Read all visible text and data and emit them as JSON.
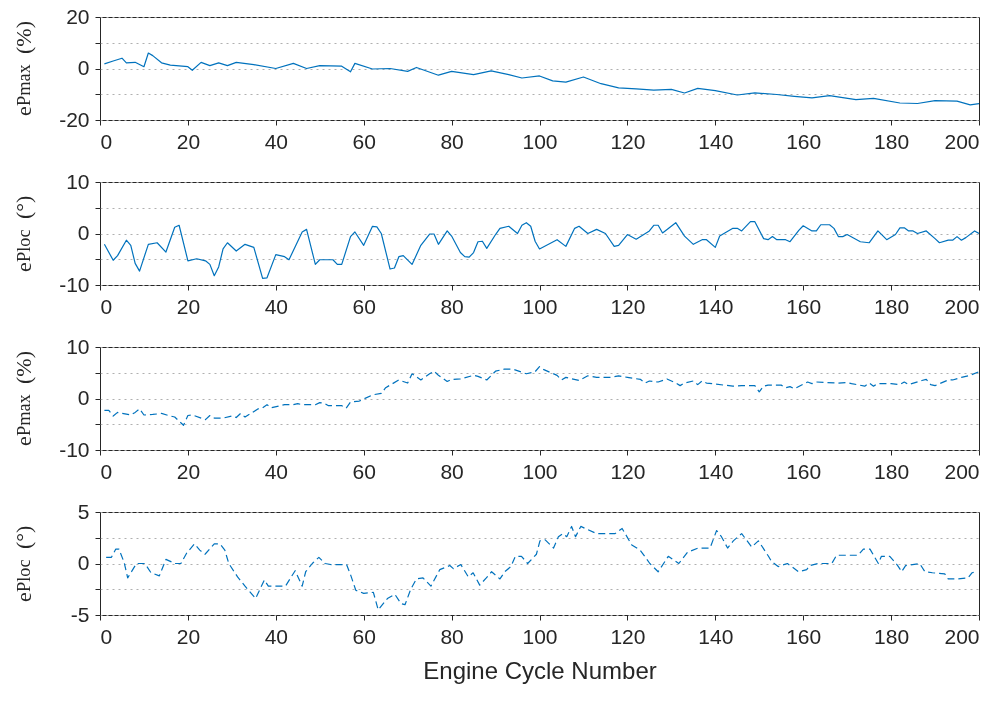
{
  "chart_data": [
    {
      "type": "line",
      "ylabel": "e$_{Pmax}$  (%)",
      "color": "#0072bd",
      "line_style": "solid",
      "grid": "y",
      "xlim": [
        0,
        200
      ],
      "xticks": [
        0,
        20,
        40,
        60,
        80,
        100,
        120,
        140,
        160,
        180,
        200
      ],
      "ylim": [
        -20,
        20
      ],
      "yticks": [
        -20,
        {
          "value": -10,
          "label": null
        },
        0,
        {
          "value": 10,
          "label": null
        },
        20
      ],
      "x": [
        1,
        3,
        5,
        6,
        8,
        10,
        11,
        12,
        14,
        16,
        20,
        21,
        23,
        25,
        27,
        29,
        31,
        35,
        40,
        44,
        47,
        50,
        55,
        57,
        58,
        62,
        66,
        70,
        72,
        77,
        80,
        85,
        89,
        93,
        96,
        100,
        103,
        106,
        110,
        114,
        118,
        122,
        126,
        130,
        133,
        136,
        140,
        145,
        149,
        154,
        158,
        162,
        166,
        172,
        176,
        182,
        186,
        190,
        195,
        198,
        200
      ],
      "values": [
        1.8,
        2.9,
        4,
        2.2,
        2.4,
        0.7,
        6,
        5,
        2.2,
        1.3,
        0.7,
        -0.7,
        2.4,
        1.1,
        2.2,
        1.1,
        2.4,
        1.5,
        0,
        2,
        0,
        1.1,
        0.9,
        -1.3,
        2,
        -0.2,
        0,
        -1.1,
        0.4,
        -2.6,
        -1.1,
        -2.4,
        -0.9,
        -2.4,
        -3.7,
        -2.9,
        -4.8,
        -5.3,
        -3.3,
        -5.9,
        -7.5,
        -7.9,
        -8.4,
        -8.1,
        -9.5,
        -7.7,
        -8.6,
        -10.3,
        -9.5,
        -10.1,
        -10.8,
        -11.4,
        -10.5,
        -12.1,
        -11.6,
        -13.4,
        -13.6,
        -12.5,
        -12.7,
        -14.1,
        -13.6
      ]
    },
    {
      "type": "line",
      "ylabel": "e$_{Ploc}$  (°)",
      "color": "#0072bd",
      "line_style": "solid",
      "grid": "y",
      "xlim": [
        0,
        200
      ],
      "xticks": [
        0,
        20,
        40,
        60,
        80,
        100,
        120,
        140,
        160,
        180,
        200
      ],
      "ylim": [
        -10,
        10
      ],
      "yticks": [
        -10,
        {
          "value": -5,
          "label": null
        },
        0,
        {
          "value": 5,
          "label": null
        },
        10
      ],
      "x": [
        1,
        3,
        4,
        6,
        7,
        8,
        9,
        11,
        13,
        15,
        17,
        18,
        20,
        22,
        24,
        25,
        26,
        27,
        28,
        29,
        31,
        33,
        35,
        37,
        38,
        40,
        42,
        43,
        46,
        47,
        49,
        50,
        53,
        54,
        55,
        57,
        58,
        60,
        62,
        63,
        64,
        66,
        67,
        68,
        69,
        71,
        73,
        75,
        76,
        77,
        79,
        80,
        82,
        83,
        84,
        85,
        86,
        87,
        88,
        90,
        91,
        93,
        95,
        96,
        97,
        98,
        99,
        100,
        104,
        106,
        108,
        109,
        111,
        113,
        115,
        117,
        118,
        120,
        122,
        125,
        126,
        127,
        128,
        131,
        133,
        135,
        137,
        138,
        140,
        141,
        144,
        145,
        146,
        148,
        149,
        151,
        152,
        153,
        154,
        156,
        157,
        159,
        160,
        162,
        163,
        164,
        166,
        167,
        168,
        169,
        170,
        173,
        175,
        177,
        179,
        181,
        182,
        183,
        184,
        185,
        186,
        188,
        190,
        191,
        193,
        194,
        195,
        196,
        197,
        199,
        200
      ],
      "values": [
        -2.1,
        -5.2,
        -4.3,
        -1.3,
        -2.3,
        -5.8,
        -7.3,
        -2.1,
        -1.8,
        -3.6,
        1.2,
        1.6,
        -5.3,
        -4.9,
        -5.3,
        -6,
        -8.2,
        -6.5,
        -3,
        -1.8,
        -3.4,
        -2.1,
        -2.7,
        -8.7,
        -8.6,
        -4.1,
        -4.5,
        -5.1,
        0.3,
        0.8,
        -6,
        -5.1,
        -5.1,
        -6,
        -6,
        -0.6,
        0.3,
        -2.3,
        1.4,
        1.3,
        0,
        -6.9,
        -6.7,
        -4.5,
        -4.3,
        -6,
        -2.3,
        -0.1,
        -0.1,
        -2.1,
        0.5,
        -0.5,
        -3.7,
        -4.5,
        -4.6,
        -3.7,
        -1.6,
        -1.5,
        -2.9,
        -0.2,
        1,
        1.4,
        0,
        1.6,
        2.1,
        1.4,
        -1.5,
        -3,
        -1.2,
        -2.5,
        1,
        1.4,
        0,
        0.8,
        0,
        -2.5,
        -2.3,
        -0.2,
        -1.1,
        0.5,
        1.6,
        1.6,
        0.1,
        2.1,
        -0.5,
        -2.1,
        -1.2,
        -1.2,
        -2.7,
        -0.5,
        1,
        1,
        0.5,
        2.3,
        2.3,
        -1,
        -1.2,
        -0.6,
        -1.2,
        -1.2,
        -1.6,
        0.6,
        1.5,
        0.5,
        0.5,
        1.7,
        1.7,
        1,
        -0.6,
        -0.6,
        -0.2,
        -1.6,
        -1.8,
        0.5,
        -1.2,
        -0.2,
        1.1,
        1.1,
        0.5,
        0.5,
        0,
        0.5,
        -1,
        -1.8,
        -1.3,
        -1.3,
        -0.6,
        -1.3,
        -0.8,
        0.5,
        0
      ]
    },
    {
      "type": "line",
      "ylabel": "e$_{Pmax}$  (%)",
      "color": "#0072bd",
      "line_style": "dashed",
      "grid": "y",
      "xlim": [
        0,
        200
      ],
      "xticks": [
        0,
        20,
        40,
        60,
        80,
        100,
        120,
        140,
        160,
        180,
        200
      ],
      "ylim": [
        -10,
        10
      ],
      "yticks": [
        -10,
        {
          "value": -5,
          "label": null
        },
        0,
        {
          "value": 5,
          "label": null
        },
        10
      ],
      "x": [
        1,
        2,
        3,
        4,
        7,
        8,
        9,
        10,
        12,
        14,
        16,
        17,
        19,
        20,
        21,
        24,
        25,
        26,
        28,
        30,
        31,
        32,
        33,
        36,
        37,
        38,
        39,
        42,
        44,
        45,
        46,
        49,
        50,
        51,
        52,
        55,
        56,
        57,
        59,
        60,
        62,
        64,
        65,
        68,
        70,
        71,
        73,
        75,
        76,
        77,
        79,
        80,
        82,
        85,
        86,
        88,
        90,
        92,
        94,
        97,
        99,
        100,
        101,
        104,
        105,
        106,
        109,
        111,
        113,
        116,
        118,
        120,
        123,
        124,
        125,
        127,
        129,
        131,
        132,
        133,
        135,
        136,
        137,
        138,
        142,
        144,
        146,
        149,
        150,
        151,
        152,
        155,
        156,
        157,
        158,
        161,
        162,
        163,
        168,
        170,
        171,
        174,
        175,
        176,
        177,
        180,
        182,
        183,
        184,
        187,
        188,
        189,
        190,
        193,
        194,
        196,
        198,
        200
      ],
      "values": [
        -2.3,
        -2.3,
        -3.4,
        -2.7,
        -3.2,
        -2.7,
        -2,
        -3.2,
        -3.1,
        -2.9,
        -3.4,
        -3.6,
        -5.2,
        -3.3,
        -3.2,
        -4.1,
        -3.3,
        -3.8,
        -3.8,
        -3.4,
        -3.7,
        -2.9,
        -3.6,
        -2,
        -1.8,
        -1.2,
        -1.8,
        -1.2,
        -1.2,
        -1,
        -1.2,
        -1.2,
        -0.8,
        -0.9,
        -1.4,
        -1.4,
        -1.9,
        -0.7,
        -0.5,
        -0.1,
        0.7,
        1,
        2.1,
        3.6,
        3,
        4.8,
        3.6,
        4.8,
        5.3,
        4.5,
        3.3,
        3.7,
        3.8,
        4.5,
        4.3,
        3.6,
        5.3,
        5.7,
        5.7,
        4.8,
        5.2,
        6.2,
        5.6,
        4.5,
        3.6,
        4.1,
        3.5,
        4.4,
        4.1,
        4.1,
        4.4,
        4.1,
        3.7,
        3,
        3.4,
        3.2,
        3.8,
        3,
        2.5,
        3,
        3.4,
        2.7,
        3.4,
        3,
        2.6,
        2.4,
        2.5,
        2.5,
        1.3,
        2.4,
        2.6,
        2.6,
        2.1,
        2.3,
        1.9,
        3.2,
        2.9,
        3.2,
        3,
        3.1,
        2.9,
        2.4,
        3,
        2.4,
        2.9,
        2.9,
        2.7,
        3.2,
        2.7,
        3.5,
        3.7,
        2.7,
        2.5,
        3.6,
        3.6,
        4.1,
        4.5,
        5.2
      ]
    },
    {
      "type": "line",
      "ylabel": "e$_{Ploc}$  (°)",
      "xlabel": "Engine Cycle Number",
      "color": "#0072bd",
      "line_style": "dashed",
      "grid": "y",
      "xlim": [
        0,
        200
      ],
      "xticks": [
        0,
        20,
        40,
        60,
        80,
        100,
        120,
        140,
        160,
        180,
        200
      ],
      "ylim": [
        -5,
        5
      ],
      "yticks": [
        -5,
        {
          "value": -2.5,
          "label": null
        },
        0,
        {
          "value": 2.5,
          "label": null
        },
        5
      ],
      "x": [
        1.4,
        2.6,
        3.6,
        4.3,
        5.5,
        6.3,
        8.3,
        10.2,
        11.6,
        13.5,
        15,
        17.1,
        18.4,
        19.7,
        21.5,
        22.7,
        23.9,
        26,
        27.3,
        28.4,
        29.3,
        31.3,
        33,
        35.4,
        37.4,
        38.3,
        39.8,
        42.2,
        44.4,
        46,
        46.8,
        48.3,
        49.8,
        51.2,
        52.5,
        56.1,
        57.1,
        58.2,
        60,
        62.2,
        63.3,
        65.4,
        67.1,
        68.5,
        69.4,
        70.7,
        72,
        73.5,
        75.3,
        77.3,
        79.6,
        80.4,
        82.1,
        83.8,
        84.9,
        86.4,
        87.9,
        89.1,
        91,
        92.1,
        93.5,
        94.5,
        95.9,
        97.3,
        99.3,
        100.1,
        101.3,
        103.2,
        104.3,
        105.3,
        106.2,
        107.3,
        108.2,
        109.4,
        113,
        117.2,
        118.8,
        121,
        122.9,
        125.1,
        127,
        129.3,
        131.7,
        133.7,
        136.1,
        138.8,
        140.3,
        141.4,
        142.8,
        144.1,
        146,
        148.3,
        149.8,
        152.1,
        152.8,
        154.3,
        156.4,
        157.4,
        158.9,
        160.8,
        161.5,
        163.4,
        166.5,
        167.6,
        169.3,
        172.5,
        173.7,
        175.2,
        177.1,
        177.8,
        179.7,
        181.5,
        182.4,
        183.3,
        186.5,
        187.7,
        189.4,
        192.2,
        193,
        195.3,
        197.5,
        198.4,
        199.4
      ],
      "values": [
        0.6,
        0.6,
        1.4,
        1.4,
        0.1,
        -1.4,
        0,
        0,
        -0.9,
        -1.2,
        0.4,
        0,
        0,
        1,
        1.9,
        1.3,
        0.9,
        1.9,
        1.9,
        1.3,
        0,
        -1.3,
        -2.2,
        -3.4,
        -1.6,
        -2.2,
        -2.2,
        -2.2,
        -0.7,
        -2.2,
        -0.8,
        0,
        0.6,
        0,
        -0.1,
        -0.1,
        -1.2,
        -2.6,
        -2.9,
        -2.8,
        -4.5,
        -3.4,
        -3,
        -3.9,
        -4,
        -2.5,
        -1.5,
        -1.4,
        -2.2,
        -0.6,
        -0.2,
        -0.5,
        -0.1,
        -1.3,
        -0.9,
        -2.1,
        -1.4,
        -0.8,
        -1.5,
        -0.8,
        -0.3,
        0.7,
        0.7,
        0,
        0.9,
        2.2,
        2.3,
        1.5,
        2.6,
        2.9,
        2.6,
        3.6,
        2.6,
        3.6,
        2.9,
        2.9,
        3.4,
        1.8,
        1.3,
        0,
        -0.8,
        0.7,
        0,
        1.1,
        1.5,
        1.5,
        3.2,
        2.6,
        1.5,
        2.2,
        2.9,
        1.6,
        2.2,
        0.7,
        0.2,
        -0.3,
        0,
        -0.3,
        -0.8,
        -0.6,
        -0.2,
        0,
        0,
        0.8,
        0.8,
        0.8,
        1.4,
        1.4,
        0,
        0.7,
        0.7,
        -0.2,
        -0.8,
        -0.2,
        0,
        -0.8,
        -0.9,
        -1,
        -1.5,
        -1.5,
        -1.4,
        -0.9,
        -0.8
      ]
    }
  ]
}
